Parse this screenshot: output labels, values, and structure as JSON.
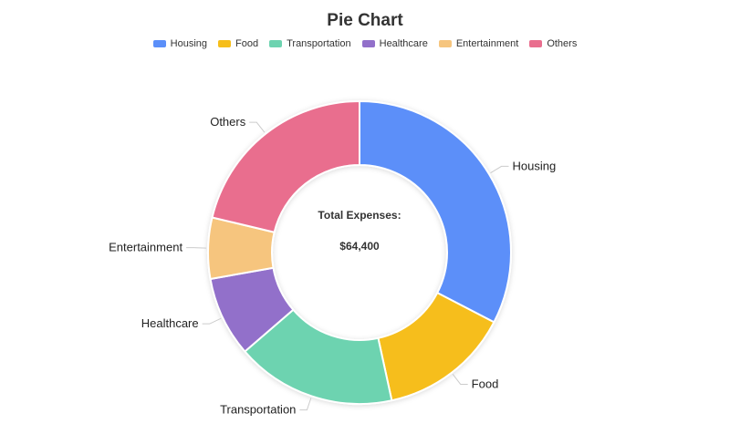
{
  "chart_data": {
    "type": "pie",
    "title": "Pie Chart",
    "donut": true,
    "legend_position": "top",
    "categories": [
      "Housing",
      "Food",
      "Transportation",
      "Healthcare",
      "Entertainment",
      "Others"
    ],
    "values": [
      21000,
      9000,
      11000,
      5500,
      4200,
      13700
    ],
    "colors": [
      "#5b8ff9",
      "#f6be1a",
      "#6dd3b0",
      "#9270ca",
      "#f6c57e",
      "#e96e8e"
    ],
    "center_label": "Total Expenses:",
    "center_value": "$64,400"
  }
}
